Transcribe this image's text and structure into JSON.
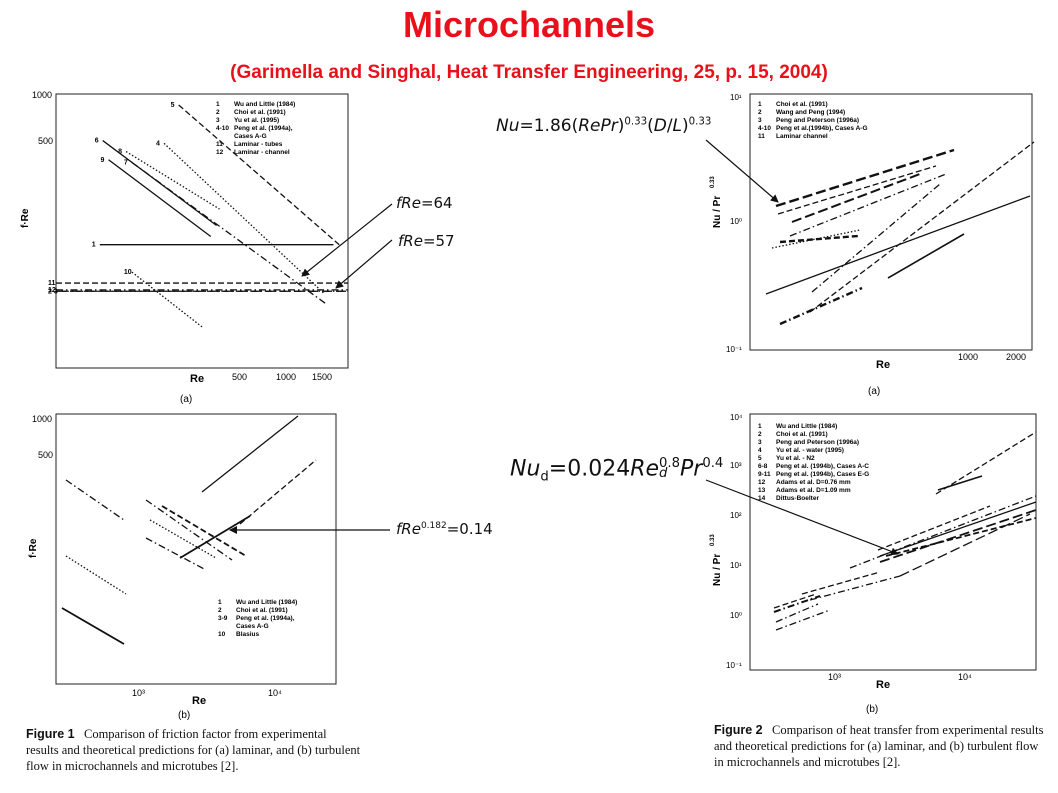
{
  "header": {
    "title": "Microchannels",
    "subtitle": "(Garimella and Singhal, Heat Transfer Engineering, 25,  p. 15, 2004)"
  },
  "formulas": [
    {
      "id": "f1",
      "parts": [
        "Nu",
        "=1.86(",
        "RePr",
        ")",
        "0.33",
        "(",
        "D",
        "/",
        "L",
        ")",
        "0.33"
      ]
    },
    {
      "id": "f2",
      "lhs": "Nu",
      "sub": "d",
      "mid": "=0.024",
      "re": "Re",
      "reexp": "0.8",
      "re_sub": "d",
      "pr": "Pr",
      "prexp": "0.4"
    },
    {
      "id": "f3",
      "text": "fRe",
      "rhs": "=64"
    },
    {
      "id": "f4",
      "text": "fRe",
      "rhs": "=57"
    },
    {
      "id": "f5",
      "text": "fRe",
      "exp": "0.182",
      "rhs": "=0.14"
    }
  ],
  "figure1": {
    "label": "Figure 1",
    "caption": "Comparison of friction factor from experimental results and theoretical predictions for (a) laminar, and (b) turbulent flow in microchannels and microtubes [2]."
  },
  "figure2": {
    "label": "Figure 2",
    "caption": "Comparison of heat transfer from experimental results and theoretical predictions for (a) laminar, and (b) turbulent flow in microchannels and microtubes [2]."
  },
  "chart_data": [
    {
      "id": "fig1a",
      "type": "line",
      "panel_label": "(a)",
      "xlabel": "Re",
      "ylabel": "f·Re",
      "x_ticks": [
        "500",
        "1000",
        "1500"
      ],
      "y_ticks": [
        "1000",
        "500"
      ],
      "legend": [
        {
          "num": "1",
          "text": "Wu and Little (1984)"
        },
        {
          "num": "2",
          "text": "Choi et al. (1991)"
        },
        {
          "num": "3",
          "text": "Yu et al. (1995)"
        },
        {
          "num": "4-10",
          "text": "Peng et al. (1994a),"
        },
        {
          "num": "",
          "text": "Cases A-G"
        },
        {
          "num": "11",
          "text": "Laminar - tubes"
        },
        {
          "num": "12",
          "text": "Laminar - channel"
        }
      ],
      "series": [
        {
          "label": "1",
          "style": "solid",
          "points": [
            [
              0.15,
              0.55
            ],
            [
              0.95,
              0.55
            ]
          ]
        },
        {
          "label": "2",
          "style": "longdash",
          "points": [
            [
              0.0,
              0.72
            ],
            [
              1.0,
              0.72
            ]
          ]
        },
        {
          "label": "3",
          "style": "dashdot",
          "points": [
            [
              0.02,
              0.72
            ],
            [
              1.0,
              0.72
            ]
          ]
        },
        {
          "label": "11",
          "style": "dash",
          "points": [
            [
              0.0,
              0.69
            ],
            [
              1.0,
              0.69
            ]
          ]
        },
        {
          "label": "12",
          "style": "dashdot",
          "points": [
            [
              0.0,
              0.715
            ],
            [
              1.0,
              0.715
            ]
          ]
        },
        {
          "label": "4",
          "style": "dot",
          "points": [
            [
              0.37,
              0.18
            ],
            [
              0.92,
              0.73
            ]
          ]
        },
        {
          "label": "5",
          "style": "dash",
          "points": [
            [
              0.42,
              0.04
            ],
            [
              0.97,
              0.55
            ]
          ]
        },
        {
          "label": "6",
          "style": "solid",
          "points": [
            [
              0.16,
              0.17
            ],
            [
              0.55,
              0.48
            ]
          ]
        },
        {
          "label": "7",
          "style": "dashdot",
          "points": [
            [
              0.26,
              0.25
            ],
            [
              0.93,
              0.77
            ]
          ]
        },
        {
          "label": "8",
          "style": "dot",
          "points": [
            [
              0.24,
              0.21
            ],
            [
              0.56,
              0.42
            ]
          ]
        },
        {
          "label": "9",
          "style": "solid",
          "points": [
            [
              0.18,
              0.24
            ],
            [
              0.53,
              0.52
            ]
          ]
        },
        {
          "label": "10",
          "style": "dot",
          "points": [
            [
              0.26,
              0.65
            ],
            [
              0.5,
              0.85
            ]
          ]
        }
      ]
    },
    {
      "id": "fig1b",
      "type": "line",
      "panel_label": "(b)",
      "xlabel": "Re",
      "ylabel": "f·Re",
      "x_ticks": [
        "10³",
        "10⁴"
      ],
      "y_ticks": [
        "1000",
        "500"
      ],
      "legend": [
        {
          "num": "1",
          "text": "Wu and Little (1984)"
        },
        {
          "num": "2",
          "text": "Choi et al. (1991)"
        },
        {
          "num": "3-9",
          "text": "Peng et al. (1994a),"
        },
        {
          "num": "",
          "text": "Cases A-G"
        },
        {
          "num": "10",
          "text": "Blasius"
        }
      ]
    },
    {
      "id": "fig2a",
      "type": "line",
      "panel_label": "(a)",
      "xlabel": "Re",
      "ylabel": "Nu / Pr",
      "ylabel_exp": "0.33",
      "x_ticks": [
        "1000",
        "2000"
      ],
      "y_ticks": [
        "10¹",
        "10⁰",
        "10⁻¹"
      ],
      "legend": [
        {
          "num": "1",
          "text": "Choi et al. (1991)"
        },
        {
          "num": "2",
          "text": "Wang and Peng (1994)"
        },
        {
          "num": "3",
          "text": "Peng and Peterson (1996a)"
        },
        {
          "num": "4-10",
          "text": "Peng et al.(1994b), Cases A-G"
        },
        {
          "num": "11",
          "text": "Laminar channel"
        }
      ]
    },
    {
      "id": "fig2b",
      "type": "line",
      "panel_label": "(b)",
      "xlabel": "Re",
      "ylabel": "Nu / Pr",
      "ylabel_exp": "0.33",
      "x_ticks": [
        "10³",
        "10⁴"
      ],
      "y_ticks": [
        "10⁴",
        "10³",
        "10²",
        "10¹",
        "10⁰",
        "10⁻¹"
      ],
      "legend": [
        {
          "num": "1",
          "text": "Wu and Little (1984)"
        },
        {
          "num": "2",
          "text": "Choi et al. (1991)"
        },
        {
          "num": "3",
          "text": "Peng and Peterson (1996a)"
        },
        {
          "num": "4",
          "text": "Yu et al. - water (1995)"
        },
        {
          "num": "5",
          "text": "Yu et al. -  N2"
        },
        {
          "num": "6-8",
          "text": "Peng et al. (1994b), Cases A-C"
        },
        {
          "num": "9-11",
          "text": "Peng et al. (1994b), Cases E-G"
        },
        {
          "num": "12",
          "text": "Adams et al. D=0.76 mm"
        },
        {
          "num": "13",
          "text": "Adams et al. D=1.09 mm"
        },
        {
          "num": "14",
          "text": "Dittus-Boelter"
        }
      ]
    }
  ]
}
